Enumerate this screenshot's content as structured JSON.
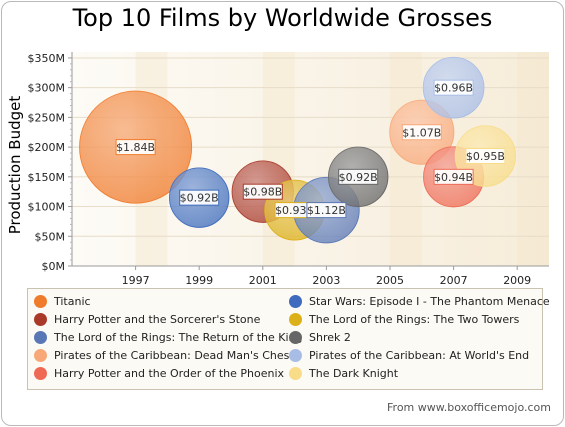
{
  "chart_data": {
    "type": "bubble",
    "title": "Top 10 Films by Worldwide Grosses",
    "ylabel": "Production Budget",
    "xlabel": "",
    "x_ticks": [
      "1997",
      "1999",
      "2001",
      "2003",
      "2005",
      "2007",
      "2009"
    ],
    "y_ticks": [
      "$0M",
      "$50M",
      "$100M",
      "$150M",
      "$200M",
      "$250M",
      "$300M",
      "$350M"
    ],
    "xlim": [
      1995,
      2010
    ],
    "ylim": [
      0,
      360
    ],
    "legend_position": "bottom",
    "source_note": "From www.boxofficemojo.com",
    "series": [
      {
        "name": "Titanic",
        "x": 1997,
        "y": 200,
        "gross": 1.84,
        "label": "$1.84B",
        "color": "#f07b2b"
      },
      {
        "name": "Star Wars: Episode I - The Phantom Menace",
        "x": 1999,
        "y": 115,
        "gross": 0.92,
        "label": "$0.92B",
        "color": "#3e6bbd"
      },
      {
        "name": "Harry Potter and the Sorcerer's Stone",
        "x": 2001,
        "y": 125,
        "gross": 0.98,
        "label": "$0.98B",
        "color": "#a93a2a"
      },
      {
        "name": "The Lord of the Rings: The Two Towers",
        "x": 2002,
        "y": 94,
        "gross": 0.93,
        "label": "$0.93B",
        "color": "#dcb018"
      },
      {
        "name": "The Lord of the Rings: The Return of the King",
        "x": 2003,
        "y": 94,
        "gross": 1.12,
        "label": "$1.12B",
        "color": "#5a77b5"
      },
      {
        "name": "Shrek 2",
        "x": 2004,
        "y": 150,
        "gross": 0.92,
        "label": "$0.92B",
        "color": "#666666"
      },
      {
        "name": "Pirates of the Caribbean: Dead Man's Chest",
        "x": 2006,
        "y": 225,
        "gross": 1.07,
        "label": "$1.07B",
        "color": "#f8a878"
      },
      {
        "name": "Pirates of the Caribbean: At World's End",
        "x": 2007,
        "y": 300,
        "gross": 0.96,
        "label": "$0.96B",
        "color": "#a8bde6"
      },
      {
        "name": "Harry Potter and the Order of the Phoenix",
        "x": 2007,
        "y": 150,
        "gross": 0.94,
        "label": "$0.94B",
        "color": "#ee6a55"
      },
      {
        "name": "The Dark Knight",
        "x": 2008,
        "y": 185,
        "gross": 0.95,
        "label": "$0.95B",
        "color": "#f8dc88"
      }
    ]
  }
}
